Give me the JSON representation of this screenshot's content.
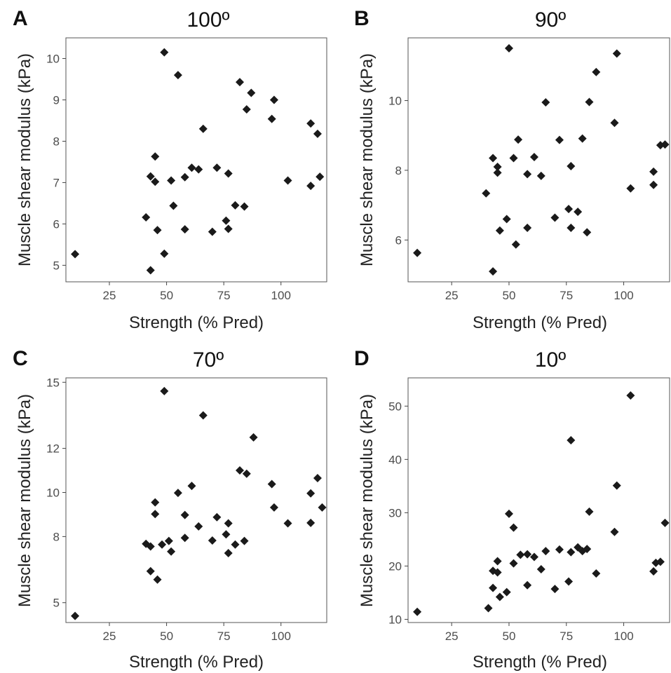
{
  "figure": {
    "panels": [
      {
        "letter": "A",
        "title": "100º"
      },
      {
        "letter": "B",
        "title": "90º"
      },
      {
        "letter": "C",
        "title": "70º"
      },
      {
        "letter": "D",
        "title": "10º"
      }
    ],
    "xlabel": "Strength (% Pred)",
    "ylabel": "Muscle shear modulus (kPa)"
  },
  "chart_data": [
    {
      "type": "scatter",
      "title": "100º",
      "xlabel": "Strength (% Pred)",
      "ylabel": "Muscle shear modulus (kPa)",
      "xlim": [
        6,
        120
      ],
      "ylim": [
        4.6,
        10.5
      ],
      "xticks": [
        25,
        50,
        75,
        100
      ],
      "yticks": [
        5,
        6,
        7,
        8,
        9,
        10
      ],
      "grid": false,
      "marker": "diamond",
      "color": "#1a1a1a",
      "points": [
        [
          10,
          5.27
        ],
        [
          41,
          6.16
        ],
        [
          43,
          7.15
        ],
        [
          43,
          4.88
        ],
        [
          45,
          7.63
        ],
        [
          45,
          7.02
        ],
        [
          46,
          5.85
        ],
        [
          49,
          10.15
        ],
        [
          49,
          5.28
        ],
        [
          52,
          7.05
        ],
        [
          53,
          6.44
        ],
        [
          55,
          9.6
        ],
        [
          58,
          7.13
        ],
        [
          58,
          5.87
        ],
        [
          61,
          7.36
        ],
        [
          64,
          7.32
        ],
        [
          66,
          8.3
        ],
        [
          70,
          5.81
        ],
        [
          72,
          7.36
        ],
        [
          76,
          6.08
        ],
        [
          77,
          7.22
        ],
        [
          77,
          5.88
        ],
        [
          80,
          6.45
        ],
        [
          82,
          9.43
        ],
        [
          84,
          6.42
        ],
        [
          85,
          8.77
        ],
        [
          87,
          9.17
        ],
        [
          96,
          8.54
        ],
        [
          97,
          9.0
        ],
        [
          103,
          7.05
        ],
        [
          113,
          8.43
        ],
        [
          113,
          6.92
        ],
        [
          116,
          8.18
        ],
        [
          117,
          7.14
        ]
      ]
    },
    {
      "type": "scatter",
      "title": "90º",
      "xlabel": "Strength (% Pred)",
      "ylabel": "Muscle shear modulus (kPa)",
      "xlim": [
        6,
        120
      ],
      "ylim": [
        4.8,
        11.8
      ],
      "xticks": [
        25,
        50,
        75,
        100
      ],
      "yticks": [
        6,
        8,
        10
      ],
      "grid": false,
      "marker": "diamond",
      "color": "#1a1a1a",
      "points": [
        [
          10,
          5.63
        ],
        [
          40,
          7.34
        ],
        [
          43,
          8.35
        ],
        [
          43,
          5.1
        ],
        [
          45,
          8.1
        ],
        [
          45,
          7.93
        ],
        [
          46,
          6.27
        ],
        [
          49,
          6.6
        ],
        [
          50,
          11.5
        ],
        [
          52,
          8.35
        ],
        [
          53,
          5.87
        ],
        [
          54,
          8.88
        ],
        [
          58,
          7.89
        ],
        [
          58,
          6.35
        ],
        [
          61,
          8.38
        ],
        [
          64,
          7.84
        ],
        [
          66,
          9.95
        ],
        [
          70,
          6.64
        ],
        [
          72,
          8.87
        ],
        [
          76,
          6.89
        ],
        [
          77,
          8.12
        ],
        [
          77,
          6.35
        ],
        [
          80,
          6.81
        ],
        [
          82,
          8.91
        ],
        [
          84,
          6.22
        ],
        [
          85,
          9.96
        ],
        [
          88,
          10.82
        ],
        [
          96,
          9.36
        ],
        [
          97,
          11.35
        ],
        [
          103,
          7.48
        ],
        [
          113,
          7.96
        ],
        [
          113,
          7.58
        ],
        [
          116,
          8.72
        ],
        [
          118,
          8.74
        ]
      ]
    },
    {
      "type": "scatter",
      "title": "70º",
      "xlabel": "Strength (% Pred)",
      "ylabel": "Muscle shear modulus (kPa)",
      "xlim": [
        6,
        120
      ],
      "ylim": [
        4.1,
        15.2
      ],
      "xticks": [
        25,
        50,
        75,
        100
      ],
      "yticks": [
        5,
        8,
        10,
        12,
        15
      ],
      "ytick_labels": [
        "5",
        "8",
        "10",
        "12",
        "15"
      ],
      "grid": false,
      "marker": "diamond",
      "color": "#1a1a1a",
      "points": [
        [
          10,
          4.4
        ],
        [
          41,
          7.67
        ],
        [
          43,
          7.55
        ],
        [
          43,
          6.43
        ],
        [
          45,
          9.55
        ],
        [
          45,
          9.02
        ],
        [
          46,
          6.05
        ],
        [
          48,
          7.64
        ],
        [
          49,
          14.6
        ],
        [
          51,
          7.8
        ],
        [
          52,
          7.32
        ],
        [
          55,
          9.98
        ],
        [
          58,
          8.98
        ],
        [
          58,
          7.94
        ],
        [
          61,
          10.3
        ],
        [
          64,
          8.46
        ],
        [
          66,
          13.5
        ],
        [
          70,
          7.82
        ],
        [
          72,
          8.88
        ],
        [
          76,
          8.1
        ],
        [
          77,
          8.6
        ],
        [
          77,
          7.25
        ],
        [
          80,
          7.64
        ],
        [
          82,
          11.0
        ],
        [
          84,
          7.8
        ],
        [
          85,
          10.85
        ],
        [
          88,
          12.5
        ],
        [
          96,
          10.38
        ],
        [
          97,
          9.32
        ],
        [
          103,
          8.6
        ],
        [
          113,
          9.96
        ],
        [
          113,
          8.62
        ],
        [
          116,
          10.65
        ],
        [
          118,
          9.32
        ]
      ]
    },
    {
      "type": "scatter",
      "title": "10º",
      "xlabel": "Strength (% Pred)",
      "ylabel": "Muscle shear modulus (kPa)",
      "xlim": [
        6,
        120
      ],
      "ylim": [
        9.4,
        55.3
      ],
      "xticks": [
        25,
        50,
        75,
        100
      ],
      "yticks": [
        10,
        20,
        30,
        40,
        50
      ],
      "grid": false,
      "marker": "diamond",
      "color": "#1a1a1a",
      "points": [
        [
          10,
          11.4
        ],
        [
          41,
          12.1
        ],
        [
          43,
          19.1
        ],
        [
          43,
          15.9
        ],
        [
          45,
          20.9
        ],
        [
          45,
          18.8
        ],
        [
          46,
          14.2
        ],
        [
          49,
          15.1
        ],
        [
          50,
          29.8
        ],
        [
          52,
          27.2
        ],
        [
          52,
          20.5
        ],
        [
          55,
          22.1
        ],
        [
          58,
          22.2
        ],
        [
          58,
          16.4
        ],
        [
          61,
          21.7
        ],
        [
          64,
          19.4
        ],
        [
          66,
          22.8
        ],
        [
          70,
          15.7
        ],
        [
          72,
          23.1
        ],
        [
          76,
          17.1
        ],
        [
          77,
          43.6
        ],
        [
          77,
          22.6
        ],
        [
          80,
          23.5
        ],
        [
          82,
          22.8
        ],
        [
          84,
          23.2
        ],
        [
          85,
          30.2
        ],
        [
          88,
          18.6
        ],
        [
          96,
          26.4
        ],
        [
          97,
          35.1
        ],
        [
          103,
          52.0
        ],
        [
          113,
          19.0
        ],
        [
          114,
          20.6
        ],
        [
          116,
          20.8
        ],
        [
          118,
          28.1
        ]
      ]
    }
  ]
}
